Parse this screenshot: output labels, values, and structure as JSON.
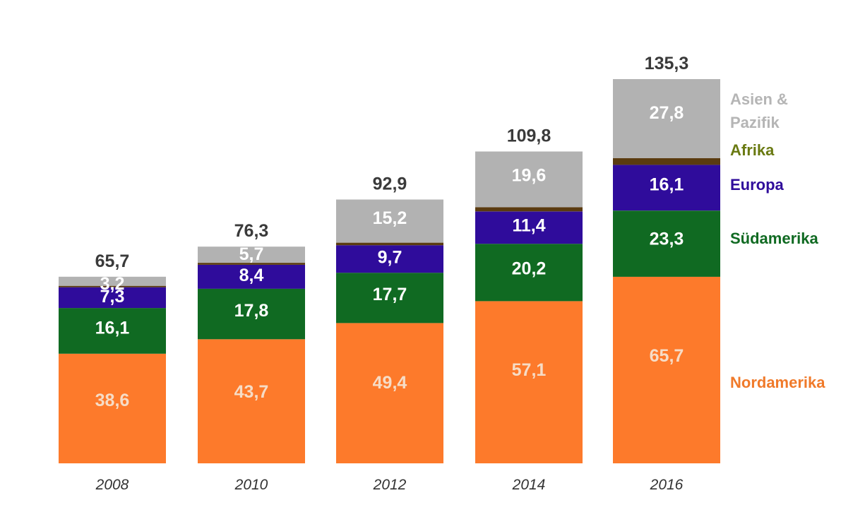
{
  "chart_data": {
    "type": "bar",
    "stacked": true,
    "categories": [
      "2008",
      "2010",
      "2012",
      "2014",
      "2016"
    ],
    "totals": [
      "65,7",
      "76,3",
      "92,9",
      "109,8",
      "135,3"
    ],
    "series": [
      {
        "name": "Nordamerika",
        "color": "#fd7a2b",
        "label_color": "#f6dcc6",
        "values": [
          38.6,
          43.7,
          49.4,
          57.1,
          65.7
        ],
        "labels": [
          "38,6",
          "43,7",
          "49,4",
          "57,1",
          "65,7"
        ]
      },
      {
        "name": "Südamerika",
        "color": "#106a22",
        "label_color": "#ffffff",
        "values": [
          16.1,
          17.8,
          17.7,
          20.2,
          23.3
        ],
        "labels": [
          "16,1",
          "17,8",
          "17,7",
          "20,2",
          "23,3"
        ]
      },
      {
        "name": "Europa",
        "color": "#2f0c9b",
        "label_color": "#ffffff",
        "values": [
          7.3,
          8.4,
          9.7,
          11.4,
          16.1
        ],
        "labels": [
          "7,3",
          "8,4",
          "9,7",
          "11,4",
          "16,1"
        ]
      },
      {
        "name": "Afrika",
        "color": "#5a3b10",
        "label_color": "#ffffff",
        "values": [
          0.5,
          0.7,
          0.9,
          1.5,
          2.4
        ],
        "labels": [
          "",
          "",
          "",
          "",
          ""
        ]
      },
      {
        "name": "Asien & Pazifik",
        "color": "#b2b2b2",
        "label_color": "#ffffff",
        "values": [
          3.2,
          5.7,
          15.2,
          19.6,
          27.8
        ],
        "labels": [
          "3,2",
          "5,7",
          "15,2",
          "19,6",
          "27,8"
        ]
      }
    ],
    "legend": [
      {
        "lines": [
          "Asien &",
          "Pazifik"
        ],
        "color": "#b5b5b5"
      },
      {
        "lines": [
          "Afrika"
        ],
        "color": "#6a7a12"
      },
      {
        "lines": [
          "Europa"
        ],
        "color": "#2f0c9b"
      },
      {
        "lines": [
          "Südamerika"
        ],
        "color": "#106a22"
      },
      {
        "lines": [
          "Nordamerika"
        ],
        "color": "#f07a2a"
      }
    ],
    "legend_placement": "right",
    "ylim": [
      0,
      135.3
    ],
    "grid": false
  }
}
